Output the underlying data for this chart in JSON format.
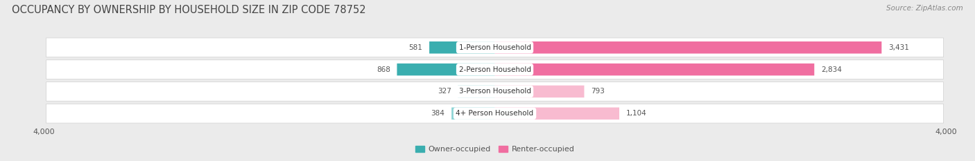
{
  "title": "OCCUPANCY BY OWNERSHIP BY HOUSEHOLD SIZE IN ZIP CODE 78752",
  "source": "Source: ZipAtlas.com",
  "categories": [
    "1-Person Household",
    "2-Person Household",
    "3-Person Household",
    "4+ Person Household"
  ],
  "owner_values": [
    581,
    868,
    327,
    384
  ],
  "renter_values": [
    3431,
    2834,
    793,
    1104
  ],
  "owner_color_dark": "#3aaeaf",
  "owner_color_light": "#8dd4d5",
  "renter_color_dark": "#f06ea0",
  "renter_color_light": "#f8bbd0",
  "axis_max": 4000,
  "background_color": "#ebebeb",
  "row_bg_color": "#f7f7f7",
  "row_border_color": "#d0d0d0",
  "title_fontsize": 10.5,
  "source_fontsize": 7.5,
  "value_fontsize": 7.5,
  "label_fontsize": 7.5,
  "tick_fontsize": 8,
  "legend_fontsize": 8
}
